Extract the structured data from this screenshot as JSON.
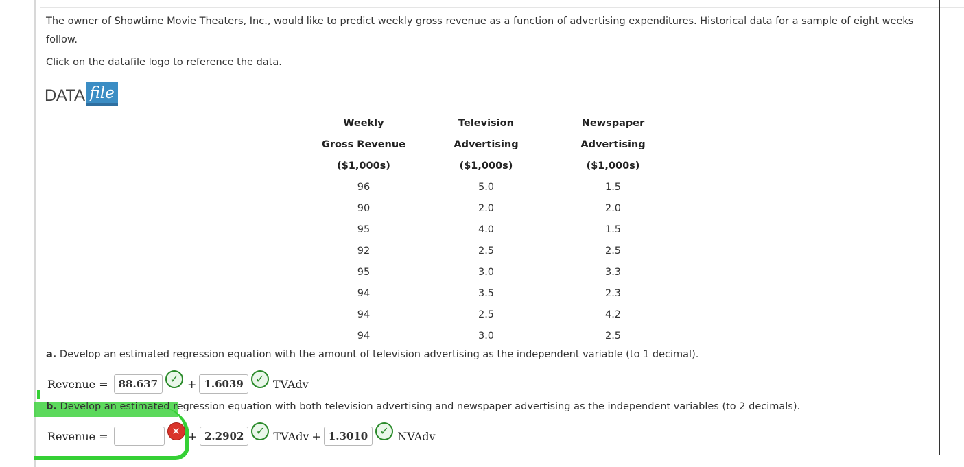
{
  "intro": "The owner of Showtime Movie Theaters, Inc., would like to predict weekly gross revenue as a function of advertising expenditures. Historical data for a sample of eight weeks follow.",
  "click_note": "Click on the datafile logo to reference the data.",
  "logo": {
    "data": "DATA",
    "file": "file"
  },
  "table": {
    "headers": [
      [
        "Weekly",
        "Television",
        "Newspaper"
      ],
      [
        "Gross Revenue",
        "Advertising",
        "Advertising"
      ],
      [
        "($1,000s)",
        "($1,000s)",
        "($1,000s)"
      ]
    ],
    "rows": [
      [
        "96",
        "5.0",
        "1.5"
      ],
      [
        "90",
        "2.0",
        "2.0"
      ],
      [
        "95",
        "4.0",
        "1.5"
      ],
      [
        "92",
        "2.5",
        "2.5"
      ],
      [
        "95",
        "3.0",
        "3.3"
      ],
      [
        "94",
        "3.5",
        "2.3"
      ],
      [
        "94",
        "2.5",
        "4.2"
      ],
      [
        "94",
        "3.0",
        "2.5"
      ]
    ]
  },
  "part_a": {
    "label": "a.",
    "question": "Develop an estimated regression equation with the amount of television advertising as the independent variable (to 1 decimal).",
    "lhs": "Revenue =",
    "intercept": "88.637",
    "coef_tv": "1.6039",
    "var_tv": "TVAdv",
    "plus": "+"
  },
  "part_b": {
    "label": "b.",
    "question": "Develop an estimated regression equation with both television advertising and newspaper advertising as the independent variables (to 2 decimals).",
    "lhs": "Revenue =",
    "intercept": "",
    "coef_tv": "2.2902",
    "var_tv": "TVAdv",
    "coef_news": "1.3010",
    "var_news": "NVAdv",
    "plus": "+"
  },
  "icons": {
    "correct": "check-circle-icon",
    "incorrect": "x-circle-icon"
  },
  "colors": {
    "highlight": "#35d035",
    "correct": "#2a8a2a",
    "incorrect": "#d9342b",
    "logo_blue": "#3b8dc4"
  }
}
